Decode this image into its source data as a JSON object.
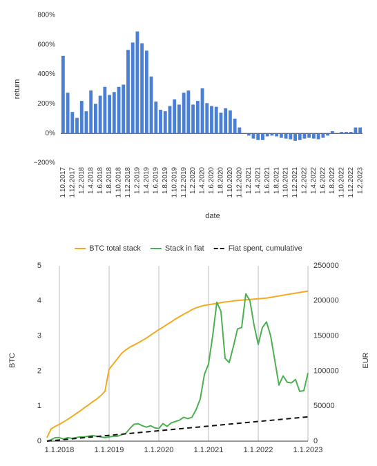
{
  "chart_data": [
    {
      "type": "bar",
      "x_label": "date",
      "y_label": "return",
      "color": "#4a7fd6",
      "grid": false,
      "categories": [
        "1.10.2017",
        null,
        "1.12.2017",
        null,
        "1.2.2018",
        null,
        "1.4.2018",
        null,
        "1.6.2018",
        null,
        "1.8.2018",
        null,
        "1.10.2018",
        null,
        "1.12.2018",
        null,
        "1.2.2019",
        null,
        "1.4.2019",
        null,
        "1.6.2019",
        null,
        "1.8.2019",
        null,
        "1.10.2019",
        null,
        "1.12.2019",
        null,
        "1.2.2020",
        null,
        "1.4.2020",
        null,
        "1.6.2020",
        null,
        "1.8.2020",
        null,
        "1.10.2020",
        null,
        "1.12.2020",
        null,
        "1.2.2021",
        null,
        "1.4.2021",
        null,
        "1.6.2021",
        null,
        "1.8.2021",
        null,
        "1.10.2021",
        null,
        "1.12.2021",
        null,
        "1.2.2022",
        null,
        "1.4.2022",
        null,
        "1.6.2022",
        null,
        "1.8.2022",
        null,
        "1.10.2022",
        null,
        "1.12.2022",
        null,
        "1.2.2023"
      ],
      "values": [
        525,
        275,
        145,
        105,
        220,
        150,
        290,
        200,
        255,
        315,
        260,
        280,
        315,
        330,
        565,
        615,
        690,
        610,
        560,
        385,
        215,
        160,
        150,
        185,
        230,
        195,
        275,
        290,
        195,
        220,
        305,
        205,
        185,
        180,
        140,
        170,
        155,
        100,
        40,
        0,
        -15,
        -35,
        -45,
        -45,
        -20,
        -15,
        -20,
        -30,
        -35,
        -40,
        -50,
        -45,
        -35,
        -30,
        -35,
        -40,
        -30,
        -15,
        15,
        0,
        10,
        10,
        10,
        40,
        40
      ],
      "ylim": [
        -200,
        800
      ],
      "yticks": [
        {
          "value": -200,
          "label": "−200%"
        },
        {
          "value": 0,
          "label": "0%"
        },
        {
          "value": 200,
          "label": "200%"
        },
        {
          "value": 400,
          "label": "400%"
        },
        {
          "value": 600,
          "label": "600%"
        },
        {
          "value": 800,
          "label": "800%"
        }
      ]
    },
    {
      "type": "line",
      "y_label": "BTC",
      "y2_label": "EUR",
      "grid": "x",
      "legend": "top",
      "categories": [
        null,
        null,
        null,
        "1.1.2018",
        null,
        null,
        null,
        null,
        null,
        null,
        null,
        null,
        null,
        null,
        null,
        "1.1.2019",
        null,
        null,
        null,
        null,
        null,
        null,
        null,
        null,
        null,
        null,
        null,
        "1.1.2020",
        null,
        null,
        null,
        null,
        null,
        null,
        null,
        null,
        null,
        null,
        null,
        "1.1.2021",
        null,
        null,
        null,
        null,
        null,
        null,
        null,
        null,
        null,
        null,
        null,
        "1.1.2022",
        null,
        null,
        null,
        null,
        null,
        null,
        null,
        null,
        null,
        null,
        null,
        "1.1.2023"
      ],
      "series": [
        {
          "name": "BTC total stack",
          "color": "#f4a91f",
          "values": [
            0.1,
            0.35,
            0.42,
            0.48,
            0.55,
            0.62,
            0.7,
            0.78,
            0.86,
            0.95,
            1.03,
            1.12,
            1.2,
            1.3,
            1.42,
            2.05,
            2.2,
            2.35,
            2.5,
            2.6,
            2.68,
            2.74,
            2.8,
            2.87,
            2.94,
            3.02,
            3.1,
            3.18,
            3.25,
            3.33,
            3.4,
            3.48,
            3.55,
            3.62,
            3.68,
            3.75,
            3.8,
            3.84,
            3.87,
            3.89,
            3.91,
            3.93,
            3.95,
            3.97,
            3.98,
            4.0,
            4.01,
            4.02,
            4.03,
            4.04,
            4.05,
            4.06,
            4.07,
            4.08,
            4.1,
            4.12,
            4.14,
            4.16,
            4.18,
            4.2,
            4.22,
            4.24,
            4.26,
            4.28
          ]
        },
        {
          "name": "Stack in fiat",
          "color": "#4caf50",
          "axis": "y2",
          "values": [
            0,
            2000,
            5000,
            5000,
            3000,
            5000,
            4000,
            5000,
            6000,
            6000,
            7000,
            8000,
            7000,
            6000,
            5000,
            6000,
            7000,
            7000,
            9000,
            11000,
            18000,
            24000,
            25000,
            22000,
            20000,
            22000,
            19000,
            18000,
            25000,
            21000,
            26000,
            28000,
            30000,
            34000,
            32000,
            34000,
            45000,
            60000,
            95000,
            110000,
            150000,
            198000,
            185000,
            118000,
            112000,
            135000,
            160000,
            162000,
            210000,
            200000,
            165000,
            138000,
            162000,
            170000,
            150000,
            115000,
            80000,
            93000,
            84000,
            83000,
            88000,
            71000,
            72000,
            97000
          ]
        },
        {
          "name": "Fiat spent, cumulative",
          "color": "#111111",
          "axis": "y2",
          "dashed": true,
          "values": [
            0,
            550,
            1100,
            1650,
            2200,
            2750,
            3300,
            3850,
            4400,
            4950,
            5500,
            6050,
            6600,
            7150,
            7700,
            8250,
            8800,
            9350,
            9900,
            10450,
            11000,
            11550,
            12100,
            12650,
            13200,
            13750,
            14300,
            14850,
            15400,
            15950,
            16500,
            17050,
            17600,
            18150,
            18700,
            19250,
            19800,
            20350,
            20900,
            21450,
            22000,
            22550,
            23100,
            23650,
            24200,
            24750,
            25300,
            25850,
            26400,
            26950,
            27500,
            28050,
            28600,
            29150,
            29700,
            30250,
            30800,
            31350,
            31900,
            32450,
            33000,
            33550,
            34100,
            34650
          ]
        }
      ],
      "ylim": [
        0,
        5
      ],
      "yticks": [
        0,
        1,
        2,
        3,
        4,
        5
      ],
      "y2lim": [
        0,
        250000
      ],
      "y2ticks": [
        0,
        50000,
        100000,
        150000,
        200000,
        250000
      ]
    }
  ]
}
